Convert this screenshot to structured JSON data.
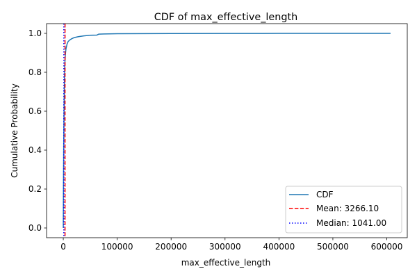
{
  "chart_data": {
    "type": "line",
    "title": "CDF of max_effective_length",
    "xlabel": "max_effective_length",
    "ylabel": "Cumulative Probability",
    "xlim": [
      -31000,
      638000
    ],
    "ylim": [
      -0.05,
      1.05
    ],
    "x_ticks": [
      0,
      100000,
      200000,
      300000,
      400000,
      500000,
      600000
    ],
    "y_ticks": [
      0.0,
      0.2,
      0.4,
      0.6,
      0.8,
      1.0
    ],
    "x_tick_labels": [
      "0",
      "100000",
      "200000",
      "300000",
      "400000",
      "500000",
      "600000"
    ],
    "y_tick_labels": [
      "0.0",
      "0.2",
      "0.4",
      "0.6",
      "0.8",
      "1.0"
    ],
    "grid": false,
    "legend_position": "lower-right",
    "series": [
      {
        "name": "CDF",
        "style": "solid",
        "color": "#1f77b4",
        "x": [
          0,
          300,
          700,
          1041,
          1500,
          2000,
          2500,
          3000,
          4000,
          5000,
          7000,
          9000,
          12000,
          16000,
          20000,
          28000,
          38000,
          48000,
          62000,
          66000,
          75000,
          100000,
          200000,
          300000,
          400000,
          500000,
          607000
        ],
        "y": [
          0.0,
          0.2,
          0.38,
          0.5,
          0.62,
          0.72,
          0.8,
          0.85,
          0.895,
          0.92,
          0.945,
          0.958,
          0.966,
          0.973,
          0.978,
          0.983,
          0.987,
          0.99,
          0.991,
          0.996,
          0.997,
          0.998,
          0.999,
          0.9995,
          0.9998,
          0.9999,
          1.0
        ]
      }
    ],
    "reference_lines": [
      {
        "name": "Mean: 3266.10",
        "x": 3266.1,
        "style": "dashed",
        "color": "#ff0000"
      },
      {
        "name": "Median: 1041.00",
        "x": 1041.0,
        "style": "dotted",
        "color": "#0000ff"
      }
    ]
  }
}
